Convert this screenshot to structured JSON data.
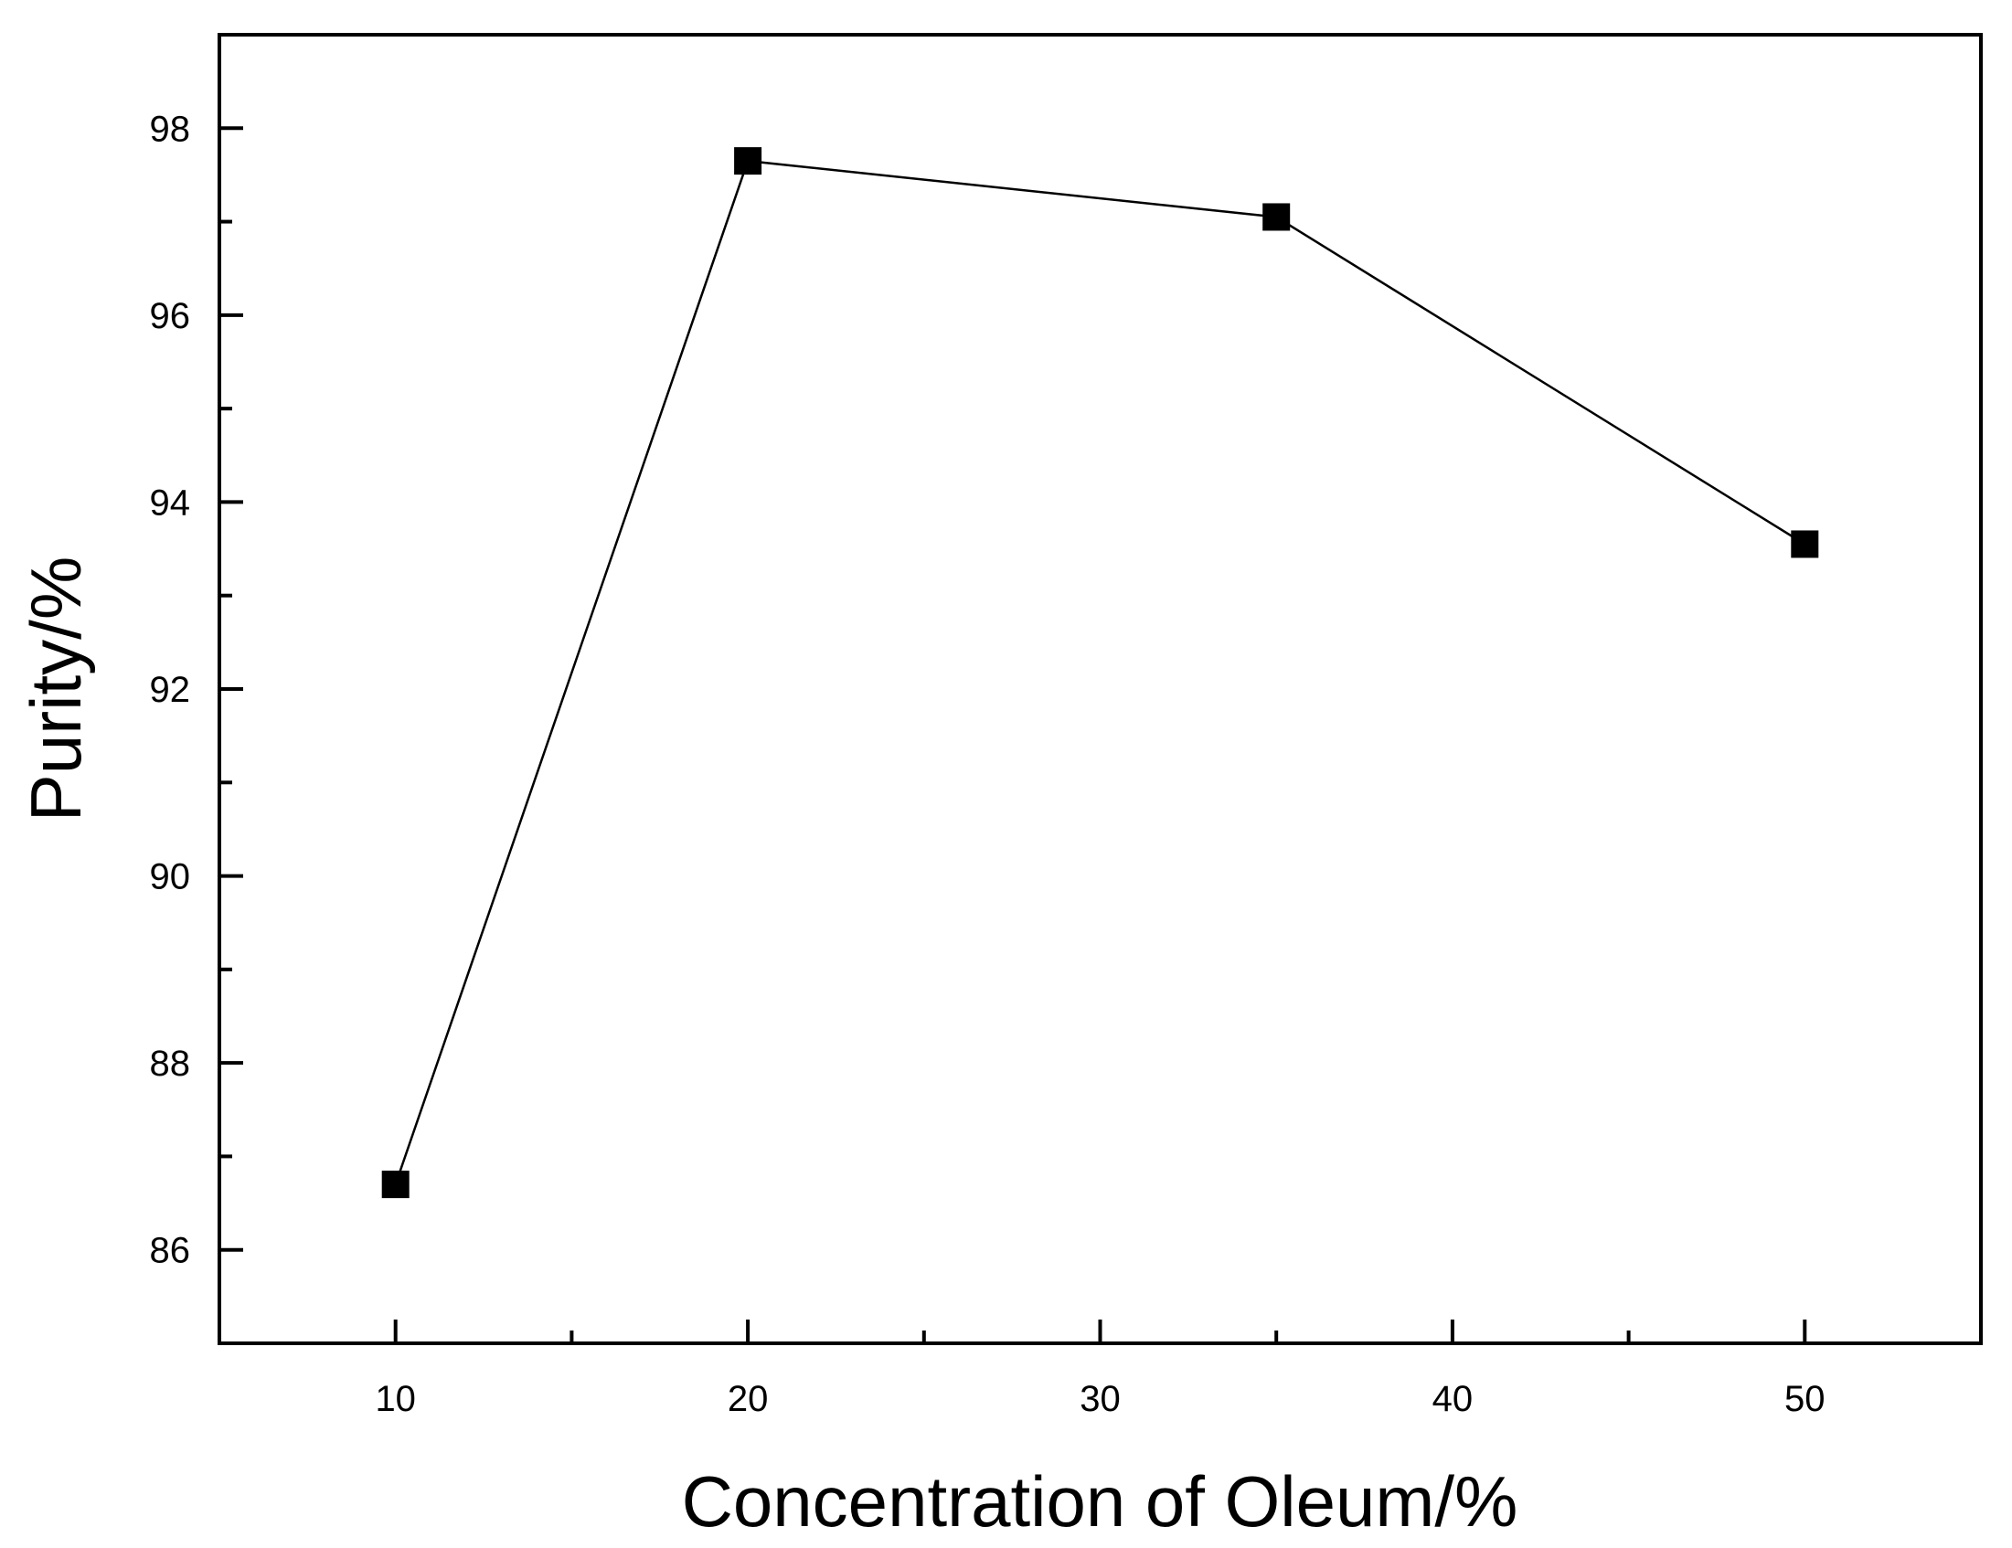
{
  "chart_data": {
    "type": "line",
    "xlabel": "Concentration of Oleum/%",
    "ylabel": "Purity/%",
    "xlim": [
      5,
      55
    ],
    "ylim": [
      85,
      99
    ],
    "x_ticks": [
      10,
      20,
      30,
      40,
      50
    ],
    "x_minor_ticks": [
      15,
      25,
      35,
      45
    ],
    "y_ticks": [
      86,
      88,
      90,
      92,
      94,
      96,
      98
    ],
    "y_minor_ticks": [
      87,
      89,
      91,
      93,
      95,
      97
    ],
    "grid": false,
    "marker": "square",
    "line_color": "#000000",
    "marker_color": "#000000",
    "series": [
      {
        "x": [
          10,
          20,
          35,
          50
        ],
        "y": [
          86.7,
          97.65,
          97.05,
          93.55
        ]
      }
    ]
  }
}
